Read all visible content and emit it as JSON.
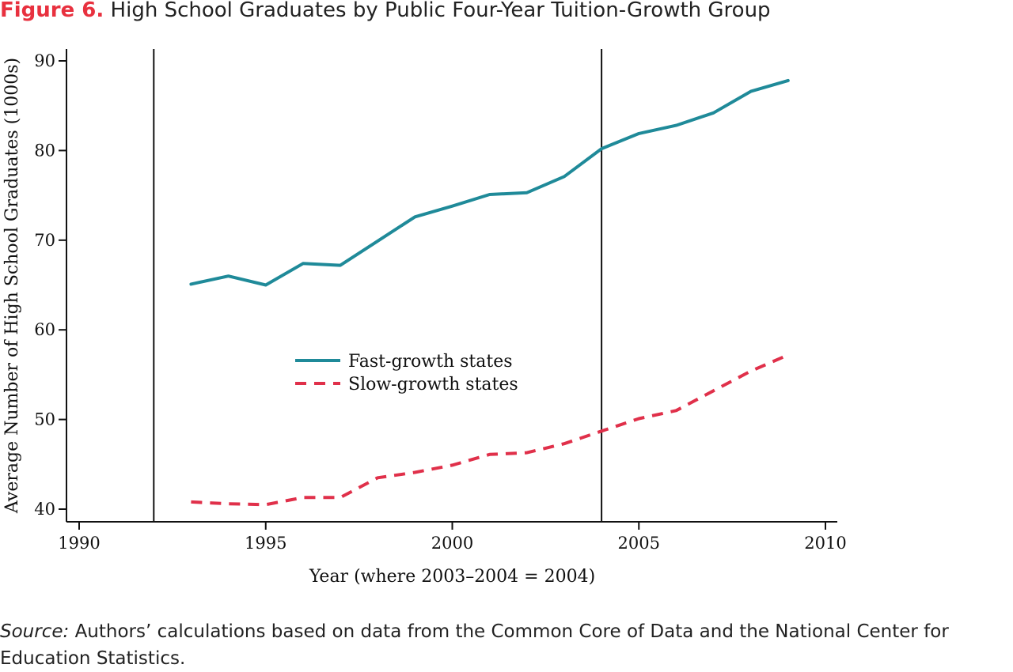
{
  "figure": {
    "label": "Figure 6.",
    "title": "High School Graduates by Public Four-Year Tuition-Growth Group"
  },
  "source": {
    "label": "Source:",
    "text": "Authors’ calculations based on data from the Common Core of Data and the National Center for Education Statistics."
  },
  "colors": {
    "fast": "#1f8a99",
    "slow": "#e0304a",
    "axis": "#111111",
    "title_accent": "#e8313f"
  },
  "chart_data": {
    "type": "line",
    "title": "High School Graduates by Public Four-Year Tuition-Growth Group",
    "xlabel": "Year (where 2003–2004 = 2004)",
    "ylabel": "Average Number of High School Graduates (1000s)",
    "xlim": [
      1990,
      2010
    ],
    "ylim": [
      40,
      90
    ],
    "xticks": [
      1990,
      1995,
      2000,
      2005,
      2010
    ],
    "yticks": [
      40,
      50,
      60,
      70,
      80,
      90
    ],
    "grid": false,
    "legend_position": "center-left",
    "reference_lines_x": [
      1992,
      2004
    ],
    "series": [
      {
        "name": "Fast-growth states",
        "style": "solid",
        "x": [
          1993,
          1994,
          1995,
          1996,
          1997,
          1998,
          1999,
          2000,
          2001,
          2002,
          2003,
          2004,
          2005,
          2006,
          2007,
          2008,
          2009
        ],
        "values": [
          65.1,
          66.0,
          65.0,
          67.4,
          67.2,
          69.9,
          72.6,
          73.8,
          75.1,
          75.3,
          77.1,
          80.2,
          81.9,
          82.8,
          84.2,
          86.6,
          87.8
        ]
      },
      {
        "name": "Slow-growth states",
        "style": "dashed",
        "x": [
          1993,
          1994,
          1995,
          1996,
          1997,
          1998,
          1999,
          2000,
          2001,
          2002,
          2003,
          2004,
          2005,
          2006,
          2007,
          2008,
          2009
        ],
        "values": [
          40.8,
          40.6,
          40.5,
          41.3,
          41.3,
          43.5,
          44.1,
          44.9,
          46.1,
          46.3,
          47.3,
          48.7,
          50.1,
          51.0,
          53.2,
          55.4,
          57.2
        ]
      }
    ]
  }
}
